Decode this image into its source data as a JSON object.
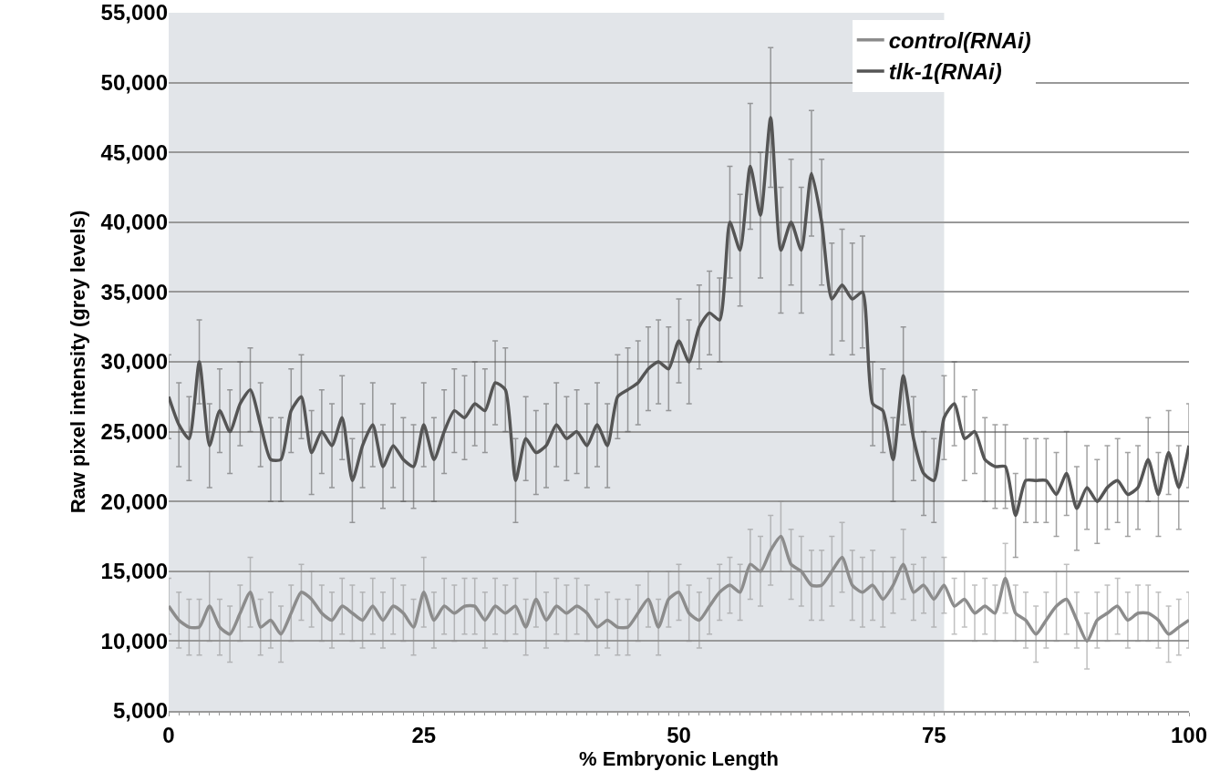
{
  "chart_data": {
    "type": "line",
    "xlabel": "% Embryonic Length",
    "ylabel": "Raw pixel intensity (grey levels)",
    "x": [
      0,
      1,
      2,
      3,
      4,
      5,
      6,
      7,
      8,
      9,
      10,
      11,
      12,
      13,
      14,
      15,
      16,
      17,
      18,
      19,
      20,
      21,
      22,
      23,
      24,
      25,
      26,
      27,
      28,
      29,
      30,
      31,
      32,
      33,
      34,
      35,
      36,
      37,
      38,
      39,
      40,
      41,
      42,
      43,
      44,
      45,
      46,
      47,
      48,
      49,
      50,
      51,
      52,
      53,
      54,
      55,
      56,
      57,
      58,
      59,
      60,
      61,
      62,
      63,
      64,
      65,
      66,
      67,
      68,
      69,
      70,
      71,
      72,
      73,
      74,
      75,
      76,
      77,
      78,
      79,
      80,
      81,
      82,
      83,
      84,
      85,
      86,
      87,
      88,
      89,
      90,
      91,
      92,
      93,
      94,
      95,
      96,
      97,
      98,
      99,
      100
    ],
    "series": [
      {
        "name": "control(RNAi)",
        "color": "#8c8c8c",
        "values": [
          12500,
          11500,
          11000,
          11000,
          12500,
          11000,
          10500,
          12000,
          13500,
          11000,
          11500,
          10500,
          12000,
          13500,
          13000,
          12000,
          11500,
          12500,
          12000,
          11500,
          12500,
          11500,
          12500,
          12000,
          11000,
          13500,
          11500,
          12500,
          12000,
          12500,
          12500,
          11500,
          12500,
          12000,
          12500,
          11000,
          13000,
          11500,
          12500,
          12000,
          12500,
          12000,
          11000,
          11500,
          11000,
          11000,
          12000,
          13000,
          11000,
          13000,
          13500,
          12000,
          11500,
          12500,
          13500,
          14000,
          13500,
          15500,
          15000,
          16500,
          17500,
          15500,
          15000,
          14000,
          14000,
          15000,
          16000,
          14000,
          13500,
          14000,
          13000,
          14000,
          15500,
          13500,
          14000,
          13000,
          14000,
          12500,
          13000,
          12000,
          12500,
          12000,
          14500,
          12000,
          11500,
          10500,
          11500,
          12500,
          13000,
          11500,
          10000,
          11500,
          12000,
          12500,
          11500,
          12000,
          12000,
          11500,
          10500,
          11000,
          11500
        ],
        "errors": [
          2000,
          2000,
          2000,
          2000,
          2500,
          2000,
          2000,
          2000,
          2500,
          2000,
          2000,
          2000,
          2000,
          2000,
          2000,
          2000,
          2000,
          2000,
          2000,
          2000,
          2000,
          2000,
          2000,
          2000,
          2000,
          2500,
          2000,
          2000,
          2000,
          2000,
          2000,
          2000,
          2000,
          2000,
          2000,
          2000,
          2000,
          2000,
          2000,
          2000,
          2000,
          2000,
          2000,
          2000,
          2000,
          2000,
          2000,
          2000,
          2000,
          2000,
          2000,
          2000,
          2000,
          2000,
          2000,
          2000,
          2000,
          2500,
          2500,
          2500,
          2500,
          2500,
          2500,
          2500,
          2500,
          2500,
          2500,
          2500,
          2500,
          2500,
          2000,
          2000,
          2500,
          2000,
          2000,
          2000,
          2000,
          2000,
          2000,
          2000,
          2000,
          2000,
          2500,
          2000,
          2000,
          2000,
          2000,
          2500,
          2500,
          2000,
          2000,
          2000,
          2000,
          2000,
          2000,
          2000,
          2000,
          2000,
          2000,
          2000,
          2000
        ]
      },
      {
        "name": "tlk-1(RNAi)",
        "color": "#555555",
        "values": [
          27500,
          25500,
          24500,
          30000,
          24000,
          26500,
          25000,
          27000,
          28000,
          25500,
          23000,
          23000,
          26500,
          27500,
          23500,
          25000,
          24000,
          26000,
          21500,
          24000,
          25500,
          22500,
          24000,
          23000,
          22500,
          25500,
          23000,
          25000,
          26500,
          26000,
          27000,
          26500,
          28500,
          28000,
          21500,
          24500,
          23500,
          24000,
          25500,
          24500,
          25000,
          24000,
          25500,
          24000,
          27500,
          28000,
          28500,
          29500,
          30000,
          29500,
          31500,
          30000,
          32500,
          33500,
          33000,
          40000,
          38000,
          44000,
          40500,
          47500,
          38000,
          40000,
          38000,
          43500,
          40000,
          34500,
          35500,
          34500,
          35000,
          27000,
          26500,
          23000,
          29000,
          24500,
          22000,
          21500,
          26000,
          27000,
          24500,
          25000,
          23000,
          22500,
          22500,
          19000,
          21500,
          21500,
          21500,
          20500,
          22000,
          19500,
          21000,
          20000,
          21000,
          21500,
          20500,
          21000,
          23000,
          20500,
          23500,
          21000,
          24000
        ],
        "errors": [
          3000,
          3000,
          3000,
          3000,
          3000,
          3000,
          3000,
          3000,
          3000,
          3000,
          3000,
          3000,
          3000,
          3000,
          3000,
          3000,
          3000,
          3000,
          3000,
          3000,
          3000,
          3000,
          3000,
          3000,
          3000,
          3000,
          3000,
          3000,
          3000,
          3000,
          3000,
          3000,
          3000,
          3000,
          3000,
          3000,
          3000,
          3000,
          3000,
          3000,
          3000,
          3000,
          3000,
          3000,
          3000,
          3000,
          3000,
          3000,
          3000,
          3000,
          3000,
          3000,
          3000,
          3000,
          3000,
          4000,
          4000,
          4500,
          4500,
          5000,
          4500,
          4500,
          4500,
          4500,
          4500,
          4000,
          4000,
          4000,
          4000,
          3000,
          3000,
          3000,
          3500,
          3000,
          3000,
          3000,
          3000,
          3000,
          3000,
          3000,
          3000,
          3000,
          3000,
          3000,
          3000,
          3000,
          3000,
          3000,
          3000,
          3000,
          3000,
          3000,
          3000,
          3000,
          3000,
          3000,
          3000,
          3000,
          3000,
          3000,
          3000
        ]
      }
    ],
    "xlim": [
      0,
      100
    ],
    "xticks": [
      0,
      25,
      50,
      75,
      100
    ],
    "ylim": [
      5000,
      55000
    ],
    "yticks": [
      {
        "value": 5000,
        "label": "5,000"
      },
      {
        "value": 10000,
        "label": "10,000"
      },
      {
        "value": 15000,
        "label": "15,000"
      },
      {
        "value": 20000,
        "label": "20,000"
      },
      {
        "value": 25000,
        "label": "25,000"
      },
      {
        "value": 30000,
        "label": "30,000"
      },
      {
        "value": 35000,
        "label": "35,000"
      },
      {
        "value": 40000,
        "label": "40,000"
      },
      {
        "value": 45000,
        "label": "45,000"
      },
      {
        "value": 50000,
        "label": "50,000"
      },
      {
        "value": 55000,
        "label": "55,000"
      }
    ],
    "bands": [
      {
        "axis": "x",
        "from": 0,
        "to": 76,
        "color": "#e2e5e9"
      }
    ],
    "grid": "y",
    "legend": "top right",
    "marker": "none",
    "line_style": "solid"
  }
}
